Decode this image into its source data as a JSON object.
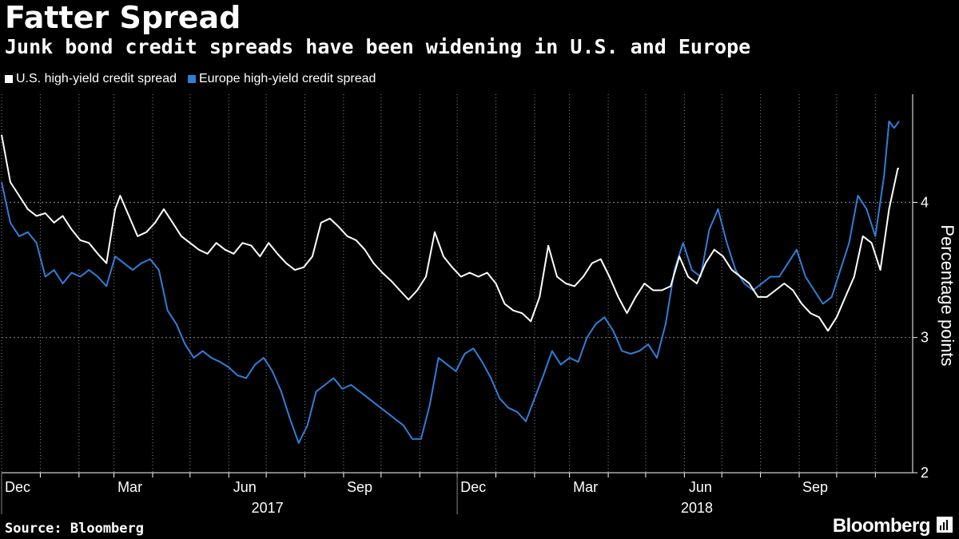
{
  "title": "Fatter Spread",
  "subtitle": "Junk bond credit spreads have been widening in U.S. and Europe",
  "source": "Source: Bloomberg",
  "brand": "Bloomberg",
  "colors": {
    "us": "#ffffff",
    "europe": "#2f7ed8",
    "background": "#000000",
    "grid": "#8a8a8a"
  },
  "chart_data": {
    "type": "line",
    "ylabel": "Percentage points",
    "xlabel": "",
    "ylim": [
      2,
      4.8
    ],
    "yticks": [
      2,
      3,
      4
    ],
    "x_start": "2016-12-01",
    "x_end": "2018-11-20",
    "x_month_labels": [
      "Dec",
      "Mar",
      "Jun",
      "Sep",
      "Dec",
      "Mar",
      "Jun",
      "Sep"
    ],
    "x_year_labels": [
      "2017",
      "2018"
    ],
    "grid": true,
    "legend_position": "top-left",
    "series": [
      {
        "name": "U.S. high-yield credit spread",
        "color": "#ffffff",
        "points": [
          [
            "2016-12-01",
            4.5
          ],
          [
            "2016-12-08",
            4.15
          ],
          [
            "2016-12-15",
            4.05
          ],
          [
            "2016-12-22",
            3.95
          ],
          [
            "2016-12-29",
            3.9
          ],
          [
            "2017-01-05",
            3.92
          ],
          [
            "2017-01-12",
            3.85
          ],
          [
            "2017-01-19",
            3.9
          ],
          [
            "2017-01-26",
            3.8
          ],
          [
            "2017-02-02",
            3.72
          ],
          [
            "2017-02-09",
            3.7
          ],
          [
            "2017-02-16",
            3.62
          ],
          [
            "2017-02-23",
            3.55
          ],
          [
            "2017-03-02",
            3.95
          ],
          [
            "2017-03-06",
            4.05
          ],
          [
            "2017-03-13",
            3.9
          ],
          [
            "2017-03-20",
            3.75
          ],
          [
            "2017-03-27",
            3.78
          ],
          [
            "2017-04-03",
            3.85
          ],
          [
            "2017-04-10",
            3.95
          ],
          [
            "2017-04-17",
            3.85
          ],
          [
            "2017-04-24",
            3.75
          ],
          [
            "2017-05-01",
            3.7
          ],
          [
            "2017-05-08",
            3.65
          ],
          [
            "2017-05-15",
            3.62
          ],
          [
            "2017-05-22",
            3.7
          ],
          [
            "2017-05-29",
            3.65
          ],
          [
            "2017-06-05",
            3.62
          ],
          [
            "2017-06-12",
            3.7
          ],
          [
            "2017-06-19",
            3.68
          ],
          [
            "2017-06-26",
            3.6
          ],
          [
            "2017-07-03",
            3.7
          ],
          [
            "2017-07-10",
            3.62
          ],
          [
            "2017-07-17",
            3.55
          ],
          [
            "2017-07-24",
            3.5
          ],
          [
            "2017-07-31",
            3.52
          ],
          [
            "2017-08-07",
            3.6
          ],
          [
            "2017-08-14",
            3.85
          ],
          [
            "2017-08-21",
            3.88
          ],
          [
            "2017-08-28",
            3.82
          ],
          [
            "2017-09-04",
            3.75
          ],
          [
            "2017-09-11",
            3.72
          ],
          [
            "2017-09-18",
            3.65
          ],
          [
            "2017-09-25",
            3.55
          ],
          [
            "2017-10-02",
            3.48
          ],
          [
            "2017-10-09",
            3.42
          ],
          [
            "2017-10-16",
            3.35
          ],
          [
            "2017-10-23",
            3.28
          ],
          [
            "2017-10-30",
            3.35
          ],
          [
            "2017-11-06",
            3.45
          ],
          [
            "2017-11-13",
            3.78
          ],
          [
            "2017-11-20",
            3.6
          ],
          [
            "2017-11-27",
            3.52
          ],
          [
            "2017-12-04",
            3.45
          ],
          [
            "2017-12-11",
            3.48
          ],
          [
            "2017-12-18",
            3.45
          ],
          [
            "2017-12-25",
            3.48
          ],
          [
            "2018-01-01",
            3.4
          ],
          [
            "2018-01-08",
            3.25
          ],
          [
            "2018-01-15",
            3.2
          ],
          [
            "2018-01-22",
            3.18
          ],
          [
            "2018-01-29",
            3.12
          ],
          [
            "2018-02-05",
            3.3
          ],
          [
            "2018-02-12",
            3.68
          ],
          [
            "2018-02-19",
            3.45
          ],
          [
            "2018-02-26",
            3.4
          ],
          [
            "2018-03-05",
            3.38
          ],
          [
            "2018-03-12",
            3.45
          ],
          [
            "2018-03-19",
            3.55
          ],
          [
            "2018-03-26",
            3.58
          ],
          [
            "2018-04-02",
            3.45
          ],
          [
            "2018-04-09",
            3.3
          ],
          [
            "2018-04-16",
            3.18
          ],
          [
            "2018-04-23",
            3.3
          ],
          [
            "2018-04-30",
            3.4
          ],
          [
            "2018-05-07",
            3.35
          ],
          [
            "2018-05-14",
            3.35
          ],
          [
            "2018-05-21",
            3.38
          ],
          [
            "2018-05-28",
            3.6
          ],
          [
            "2018-06-04",
            3.45
          ],
          [
            "2018-06-11",
            3.4
          ],
          [
            "2018-06-18",
            3.55
          ],
          [
            "2018-06-25",
            3.65
          ],
          [
            "2018-07-02",
            3.6
          ],
          [
            "2018-07-09",
            3.5
          ],
          [
            "2018-07-16",
            3.45
          ],
          [
            "2018-07-23",
            3.4
          ],
          [
            "2018-07-30",
            3.3
          ],
          [
            "2018-08-06",
            3.3
          ],
          [
            "2018-08-13",
            3.35
          ],
          [
            "2018-08-20",
            3.4
          ],
          [
            "2018-08-27",
            3.35
          ],
          [
            "2018-09-03",
            3.25
          ],
          [
            "2018-09-10",
            3.18
          ],
          [
            "2018-09-17",
            3.15
          ],
          [
            "2018-09-24",
            3.05
          ],
          [
            "2018-10-01",
            3.15
          ],
          [
            "2018-10-08",
            3.3
          ],
          [
            "2018-10-15",
            3.45
          ],
          [
            "2018-10-22",
            3.75
          ],
          [
            "2018-10-29",
            3.7
          ],
          [
            "2018-11-05",
            3.5
          ],
          [
            "2018-11-12",
            3.95
          ],
          [
            "2018-11-19",
            4.25
          ],
          [
            "2018-11-20",
            4.25
          ]
        ]
      },
      {
        "name": "Europe high-yield credit spread",
        "color": "#2f7ed8",
        "points": [
          [
            "2016-12-01",
            4.15
          ],
          [
            "2016-12-08",
            3.85
          ],
          [
            "2016-12-15",
            3.75
          ],
          [
            "2016-12-22",
            3.78
          ],
          [
            "2016-12-29",
            3.7
          ],
          [
            "2017-01-05",
            3.45
          ],
          [
            "2017-01-12",
            3.5
          ],
          [
            "2017-01-19",
            3.4
          ],
          [
            "2017-01-26",
            3.48
          ],
          [
            "2017-02-02",
            3.45
          ],
          [
            "2017-02-09",
            3.5
          ],
          [
            "2017-02-16",
            3.45
          ],
          [
            "2017-02-23",
            3.38
          ],
          [
            "2017-03-02",
            3.6
          ],
          [
            "2017-03-09",
            3.55
          ],
          [
            "2017-03-16",
            3.5
          ],
          [
            "2017-03-23",
            3.55
          ],
          [
            "2017-03-30",
            3.58
          ],
          [
            "2017-04-06",
            3.5
          ],
          [
            "2017-04-13",
            3.2
          ],
          [
            "2017-04-20",
            3.1
          ],
          [
            "2017-04-27",
            2.95
          ],
          [
            "2017-05-04",
            2.85
          ],
          [
            "2017-05-11",
            2.9
          ],
          [
            "2017-05-18",
            2.85
          ],
          [
            "2017-05-25",
            2.82
          ],
          [
            "2017-06-01",
            2.78
          ],
          [
            "2017-06-08",
            2.72
          ],
          [
            "2017-06-15",
            2.7
          ],
          [
            "2017-06-22",
            2.8
          ],
          [
            "2017-06-29",
            2.85
          ],
          [
            "2017-07-06",
            2.75
          ],
          [
            "2017-07-13",
            2.6
          ],
          [
            "2017-07-20",
            2.4
          ],
          [
            "2017-07-27",
            2.22
          ],
          [
            "2017-08-03",
            2.35
          ],
          [
            "2017-08-10",
            2.6
          ],
          [
            "2017-08-17",
            2.65
          ],
          [
            "2017-08-24",
            2.7
          ],
          [
            "2017-08-31",
            2.62
          ],
          [
            "2017-09-07",
            2.65
          ],
          [
            "2017-09-14",
            2.6
          ],
          [
            "2017-09-21",
            2.55
          ],
          [
            "2017-09-28",
            2.5
          ],
          [
            "2017-10-05",
            2.45
          ],
          [
            "2017-10-12",
            2.4
          ],
          [
            "2017-10-19",
            2.35
          ],
          [
            "2017-10-26",
            2.25
          ],
          [
            "2017-11-02",
            2.25
          ],
          [
            "2017-11-09",
            2.5
          ],
          [
            "2017-11-16",
            2.85
          ],
          [
            "2017-11-23",
            2.8
          ],
          [
            "2017-11-30",
            2.75
          ],
          [
            "2017-12-07",
            2.88
          ],
          [
            "2017-12-14",
            2.92
          ],
          [
            "2017-12-21",
            2.82
          ],
          [
            "2017-12-28",
            2.7
          ],
          [
            "2018-01-04",
            2.55
          ],
          [
            "2018-01-11",
            2.48
          ],
          [
            "2018-01-18",
            2.45
          ],
          [
            "2018-01-25",
            2.38
          ],
          [
            "2018-02-01",
            2.55
          ],
          [
            "2018-02-08",
            2.72
          ],
          [
            "2018-02-15",
            2.9
          ],
          [
            "2018-02-22",
            2.8
          ],
          [
            "2018-03-01",
            2.85
          ],
          [
            "2018-03-08",
            2.82
          ],
          [
            "2018-03-15",
            3.0
          ],
          [
            "2018-03-22",
            3.1
          ],
          [
            "2018-03-29",
            3.15
          ],
          [
            "2018-04-05",
            3.05
          ],
          [
            "2018-04-12",
            2.9
          ],
          [
            "2018-04-19",
            2.88
          ],
          [
            "2018-04-26",
            2.9
          ],
          [
            "2018-05-03",
            2.95
          ],
          [
            "2018-05-10",
            2.85
          ],
          [
            "2018-05-17",
            3.1
          ],
          [
            "2018-05-24",
            3.5
          ],
          [
            "2018-05-31",
            3.7
          ],
          [
            "2018-06-07",
            3.5
          ],
          [
            "2018-06-14",
            3.45
          ],
          [
            "2018-06-21",
            3.8
          ],
          [
            "2018-06-28",
            3.95
          ],
          [
            "2018-07-05",
            3.7
          ],
          [
            "2018-07-12",
            3.5
          ],
          [
            "2018-07-19",
            3.4
          ],
          [
            "2018-07-26",
            3.35
          ],
          [
            "2018-08-02",
            3.4
          ],
          [
            "2018-08-09",
            3.45
          ],
          [
            "2018-08-16",
            3.45
          ],
          [
            "2018-08-23",
            3.55
          ],
          [
            "2018-08-30",
            3.65
          ],
          [
            "2018-09-06",
            3.45
          ],
          [
            "2018-09-13",
            3.35
          ],
          [
            "2018-09-20",
            3.25
          ],
          [
            "2018-09-27",
            3.3
          ],
          [
            "2018-10-04",
            3.5
          ],
          [
            "2018-10-11",
            3.7
          ],
          [
            "2018-10-18",
            4.05
          ],
          [
            "2018-10-25",
            3.95
          ],
          [
            "2018-11-01",
            3.75
          ],
          [
            "2018-11-08",
            4.2
          ],
          [
            "2018-11-12",
            4.6
          ],
          [
            "2018-11-16",
            4.55
          ],
          [
            "2018-11-20",
            4.6
          ]
        ]
      }
    ]
  }
}
